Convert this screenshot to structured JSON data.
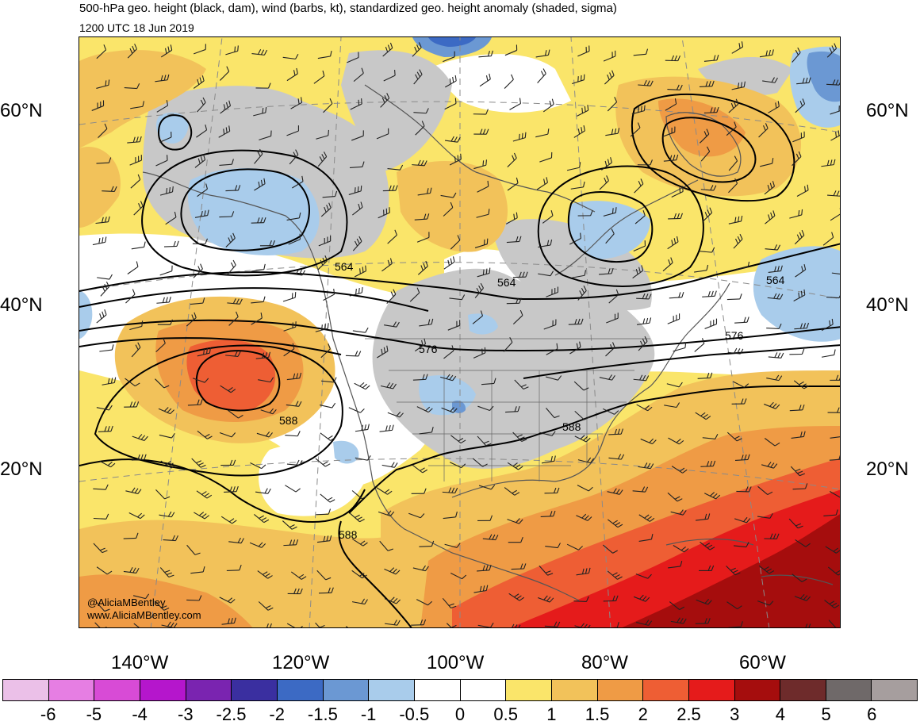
{
  "title": "500-hPa geo. height (black, dam), wind (barbs, kt), standardized geo. height anomaly (shaded, sigma)",
  "subtitle": "1200 UTC 18 Jun 2019",
  "credit": {
    "handle": "@AliciaMBentley",
    "website": "www.AliciaMBentley.com"
  },
  "lat_labels": [
    "60°N",
    "40°N",
    "20°N"
  ],
  "lon_labels": [
    "140°W",
    "120°W",
    "100°W",
    "80°W",
    "60°W"
  ],
  "contour_labels": [
    "564",
    "564",
    "564",
    "576",
    "576",
    "588",
    "588",
    "588"
  ],
  "colorbar": {
    "labels": [
      "-6",
      "-5",
      "-4",
      "-3",
      "-2.5",
      "-2",
      "-1.5",
      "-1",
      "-0.5",
      "0",
      "0.5",
      "1",
      "1.5",
      "2",
      "2.5",
      "3",
      "4",
      "5",
      "6"
    ],
    "colors": [
      "#ebc0e8",
      "#e67ee3",
      "#d84bd6",
      "#b516cc",
      "#7a24b0",
      "#3a2fa0",
      "#3c6ac4",
      "#6b98d3",
      "#a9cceb",
      "#ffffff",
      "#ffffff",
      "#fae56a",
      "#f2c25a",
      "#ef9b45",
      "#ee5e34",
      "#e51b1b",
      "#a50d0d",
      "#6e2b2b",
      "#6f6969",
      "#a69e9e"
    ]
  },
  "map_colors": {
    "ocean": "#ffffff",
    "near_normal_land": "#c8c8c8",
    "weak_positive": "#fae56a",
    "moderate_positive": "#f2c25a",
    "strong_positive": "#ef9b45",
    "very_strong_positive": "#ee5e34",
    "extreme_positive": "#e51b1b",
    "record_positive": "#a50d0d",
    "weak_negative": "#a9cceb",
    "moderate_negative": "#6b98d3",
    "strong_negative": "#3c6ac4"
  }
}
